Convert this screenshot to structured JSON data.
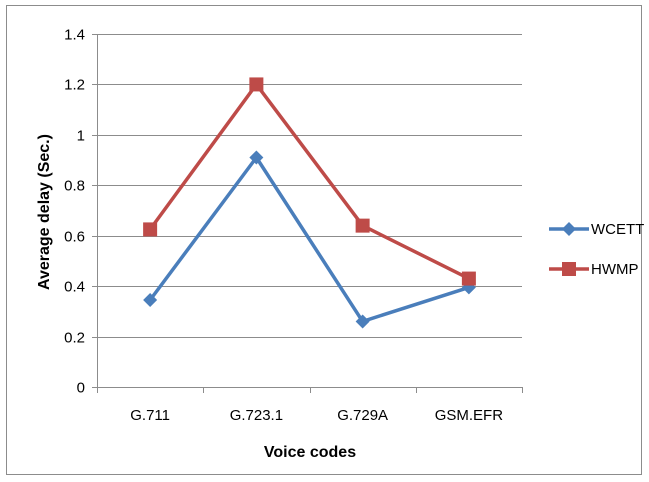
{
  "chart_data": {
    "type": "line",
    "title": "",
    "xlabel": "Voice codes",
    "ylabel": "Average delay (Sec.)",
    "categories": [
      "G.711",
      "G.723.1",
      "G.729A",
      "GSM.EFR"
    ],
    "ylim": [
      0,
      1.4
    ],
    "yticks": [
      "0",
      "0.2",
      "0.4",
      "0.6",
      "0.8",
      "1",
      "1.2",
      "1.4"
    ],
    "grid": true,
    "legend_position": "right",
    "series": [
      {
        "name": "WCETT",
        "values": [
          0.345,
          0.91,
          0.26,
          0.395
        ],
        "color": "#4a7ebb",
        "marker": "diamond"
      },
      {
        "name": "HWMP",
        "values": [
          0.625,
          1.2,
          0.64,
          0.43
        ],
        "color": "#be4b48",
        "marker": "square"
      }
    ]
  }
}
